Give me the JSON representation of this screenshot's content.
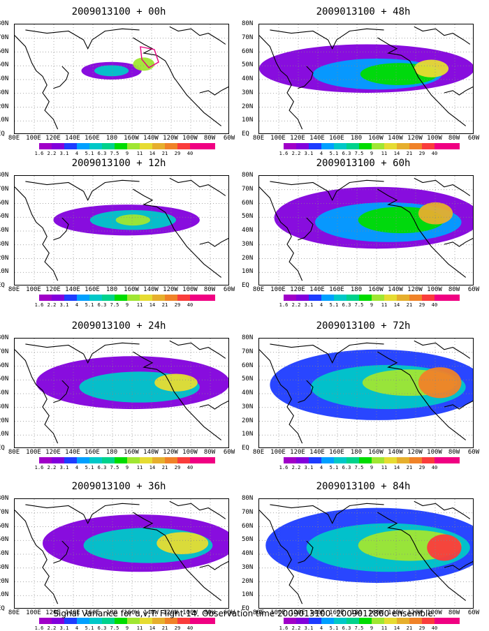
{
  "panels": [
    {
      "title": "2009013100 + 00h",
      "lead": "00h"
    },
    {
      "title": "2009013100 + 48h",
      "lead": "48h"
    },
    {
      "title": "2009013100 + 12h",
      "lead": "12h"
    },
    {
      "title": "2009013100 + 60h",
      "lead": "60h"
    },
    {
      "title": "2009013100 + 24h",
      "lead": "24h"
    },
    {
      "title": "2009013100 + 72h",
      "lead": "72h"
    },
    {
      "title": "2009013100 + 36h",
      "lead": "36h"
    },
    {
      "title": "2009013100 + 84h",
      "lead": "84h"
    }
  ],
  "lat_labels": [
    "80N",
    "70N",
    "60N",
    "50N",
    "40N",
    "30N",
    "20N",
    "10N",
    "EQ"
  ],
  "lon_labels": [
    "80E",
    "100E",
    "120E",
    "140E",
    "160E",
    "180",
    "160W",
    "140W",
    "120W",
    "100W",
    "80W",
    "60W"
  ],
  "colorbar": {
    "levels": [
      "1.6",
      "2.2",
      "3.1",
      "4",
      "5.1",
      "6.3",
      "7.5",
      "9",
      "11",
      "14",
      "21",
      "29",
      "40"
    ],
    "colors": [
      "#a000c8",
      "#8200dc",
      "#1e3cff",
      "#00a0ff",
      "#00c8c8",
      "#00d28c",
      "#00dc00",
      "#a0e632",
      "#e6dc32",
      "#e6af2d",
      "#f08228",
      "#fa3c3c",
      "#f00082"
    ]
  },
  "caption": "Signal Variance for u,v,T. Flight 14. Observation time 2009013100. 2009012800 ensemble."
}
